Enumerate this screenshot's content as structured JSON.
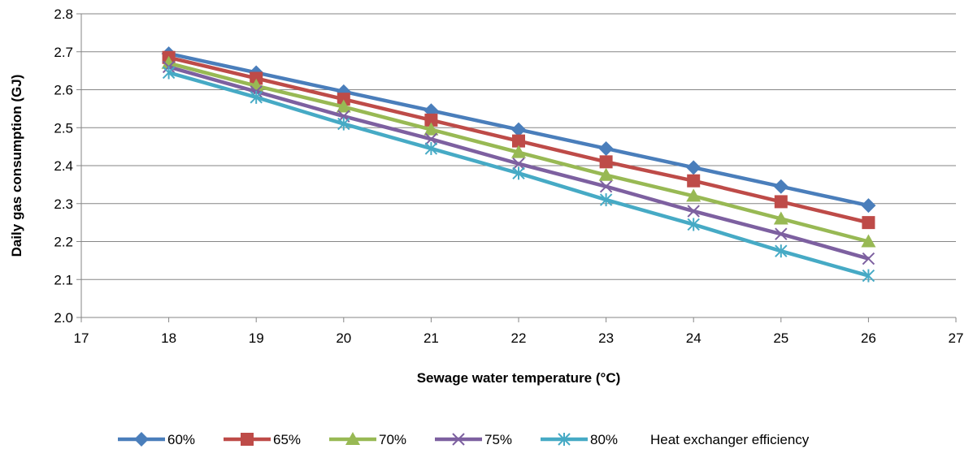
{
  "chart_data": {
    "type": "line",
    "xlabel": "Sewage water temperature (°C)",
    "ylabel": "Daily gas consumption (GJ)",
    "xlim": [
      17,
      27
    ],
    "ylim": [
      2.0,
      2.8
    ],
    "xticks": [
      17,
      18,
      19,
      20,
      21,
      22,
      23,
      24,
      25,
      26,
      27
    ],
    "yticks": [
      "2.0",
      "2.1",
      "2.2",
      "2.3",
      "2.4",
      "2.5",
      "2.6",
      "2.7",
      "2.8"
    ],
    "grid": "horizontal",
    "legend_position": "bottom",
    "legend_title": "Heat exchanger efficiency",
    "x": [
      18,
      19,
      20,
      21,
      22,
      23,
      24,
      25,
      26
    ],
    "series": [
      {
        "name": "60%",
        "color": "#4a7ebb",
        "marker": "diamond",
        "values": [
          2.695,
          2.645,
          2.595,
          2.545,
          2.495,
          2.445,
          2.395,
          2.345,
          2.295
        ]
      },
      {
        "name": "65%",
        "color": "#be4b48",
        "marker": "square",
        "values": [
          2.685,
          2.63,
          2.575,
          2.52,
          2.465,
          2.41,
          2.36,
          2.305,
          2.25
        ]
      },
      {
        "name": "70%",
        "color": "#98b954",
        "marker": "triangle",
        "values": [
          2.67,
          2.61,
          2.555,
          2.495,
          2.435,
          2.375,
          2.32,
          2.26,
          2.2
        ]
      },
      {
        "name": "75%",
        "color": "#7d60a0",
        "marker": "x",
        "values": [
          2.66,
          2.595,
          2.53,
          2.47,
          2.405,
          2.345,
          2.28,
          2.22,
          2.155
        ]
      },
      {
        "name": "80%",
        "color": "#46aac5",
        "marker": "star",
        "values": [
          2.645,
          2.58,
          2.51,
          2.445,
          2.38,
          2.31,
          2.245,
          2.175,
          2.11
        ]
      }
    ]
  }
}
